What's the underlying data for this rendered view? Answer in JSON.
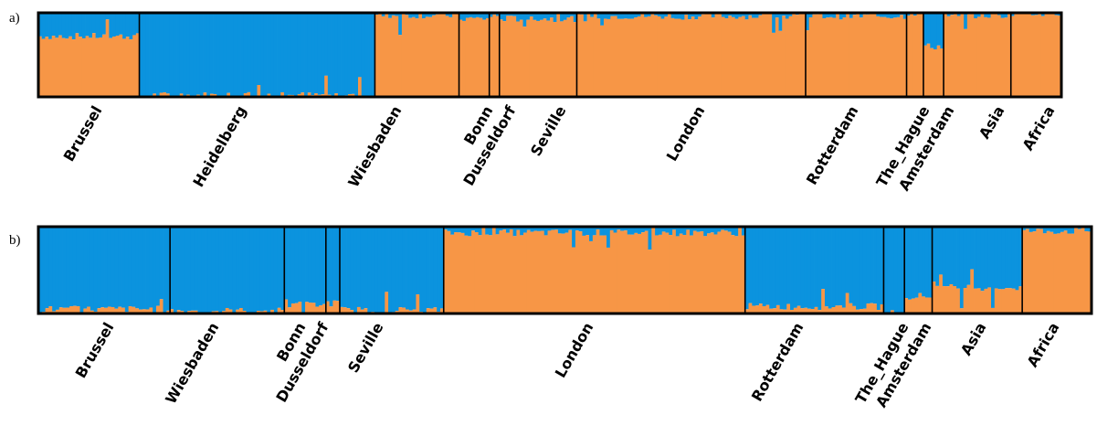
{
  "chart_data": [
    {
      "type": "bar",
      "panel_label": "a)",
      "stacked": true,
      "ylim": [
        0,
        1
      ],
      "series": [
        {
          "color": "#f79646"
        },
        {
          "color": "#0b93de"
        }
      ],
      "populations": [
        {
          "name": "Brussel",
          "n": 30,
          "orange_mean": 0.72
        },
        {
          "name": "Heidelberg",
          "n": 70,
          "orange_mean": 0.02
        },
        {
          "name": "Wiesbaden",
          "n": 25,
          "orange_mean": 0.97
        },
        {
          "name": "Bonn",
          "n": 9,
          "orange_mean": 0.93
        },
        {
          "name": "Dusseldorf",
          "n": 3,
          "orange_mean": 0.96
        },
        {
          "name": "Seville",
          "n": 23,
          "orange_mean": 0.93
        },
        {
          "name": "London",
          "n": 68,
          "orange_mean": 0.96
        },
        {
          "name": "Rotterdam",
          "n": 30,
          "orange_mean": 0.96
        },
        {
          "name": "The_Hague",
          "n": 5,
          "orange_mean": 1.0
        },
        {
          "name": "Amsterdam",
          "n": 6,
          "orange_mean": 0.6
        },
        {
          "name": "Asia",
          "n": 20,
          "orange_mean": 0.97
        },
        {
          "name": "Africa",
          "n": 15,
          "orange_mean": 1.0
        }
      ]
    },
    {
      "type": "bar",
      "panel_label": "b)",
      "stacked": true,
      "ylim": [
        0,
        1
      ],
      "series": [
        {
          "color": "#f79646"
        },
        {
          "color": "#0b93de"
        }
      ],
      "populations": [
        {
          "name": "Brussel",
          "n": 38,
          "orange_mean": 0.05
        },
        {
          "name": "Wiesbaden",
          "n": 33,
          "orange_mean": 0.03
        },
        {
          "name": "Bonn",
          "n": 12,
          "orange_mean": 0.1
        },
        {
          "name": "Dusseldorf",
          "n": 4,
          "orange_mean": 0.12
        },
        {
          "name": "Seville",
          "n": 30,
          "orange_mean": 0.04
        },
        {
          "name": "London",
          "n": 87,
          "orange_mean": 0.93
        },
        {
          "name": "Rotterdam",
          "n": 40,
          "orange_mean": 0.08
        },
        {
          "name": "The_Hague",
          "n": 6,
          "orange_mean": 0.0
        },
        {
          "name": "Amsterdam",
          "n": 8,
          "orange_mean": 0.2
        },
        {
          "name": "Asia",
          "n": 26,
          "orange_mean": 0.3
        },
        {
          "name": "Africa",
          "n": 20,
          "orange_mean": 0.95
        }
      ]
    }
  ]
}
